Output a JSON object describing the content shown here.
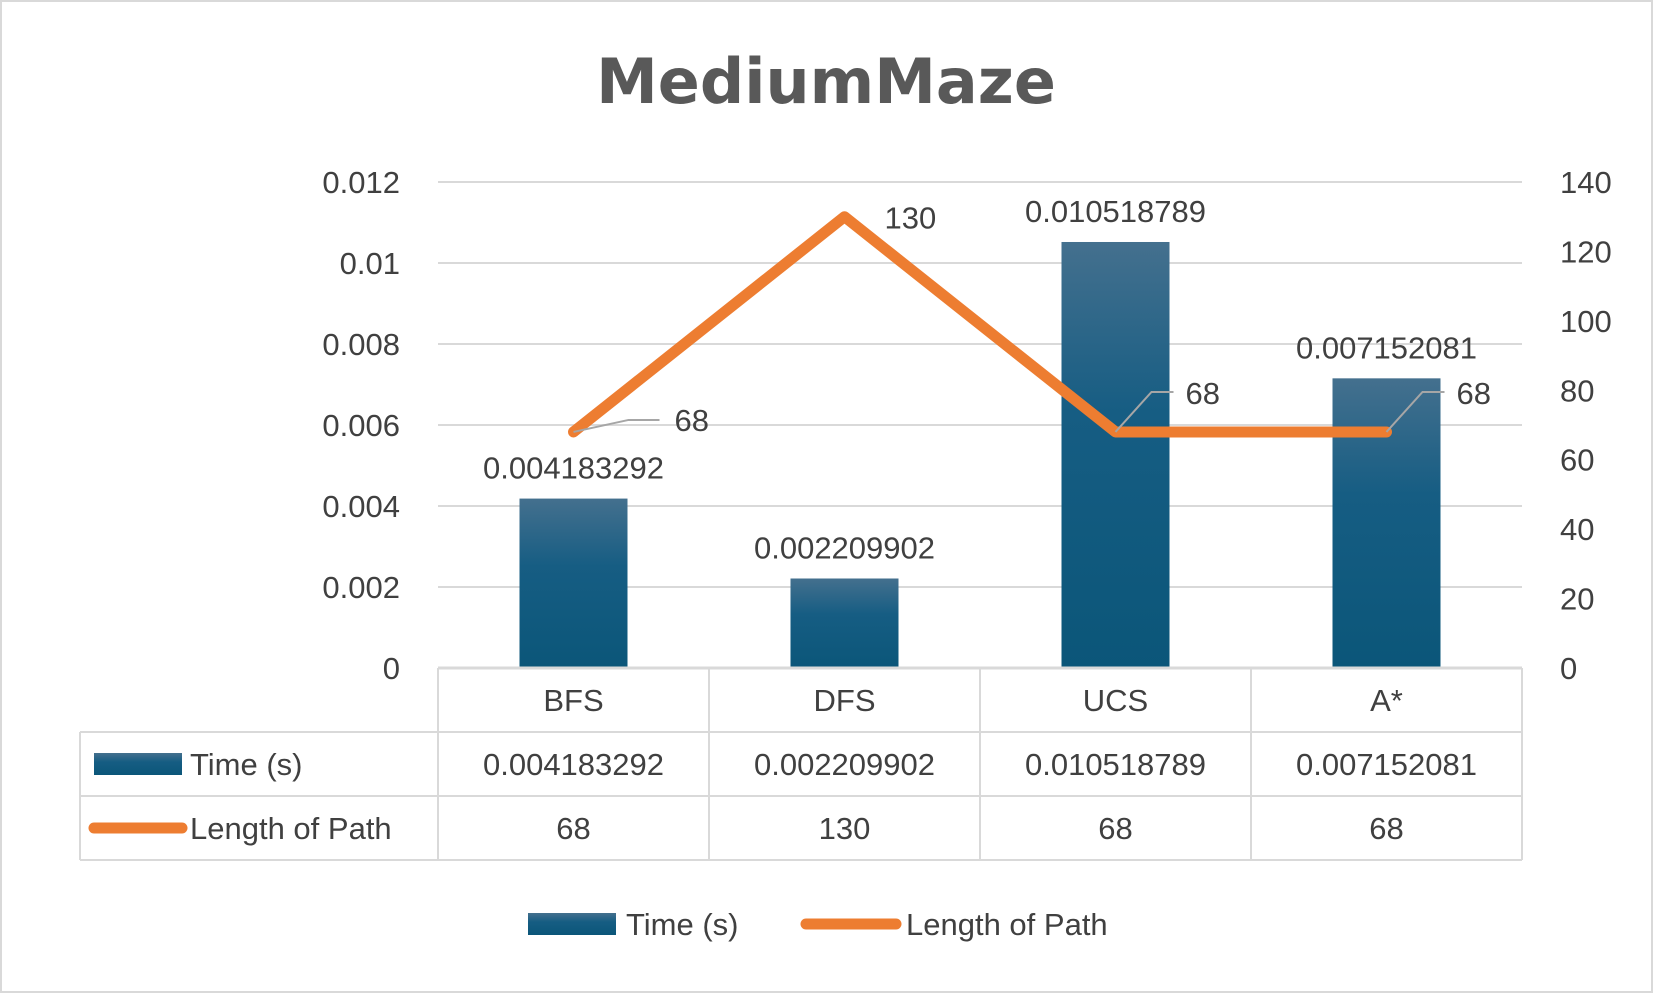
{
  "chart_data": {
    "type": "bar",
    "title": "MediumMaze",
    "categories": [
      "BFS",
      "DFS",
      "UCS",
      "A*"
    ],
    "series": [
      {
        "name": "Time (s)",
        "type": "bar",
        "axis": "left",
        "color": "#1f5f84",
        "values": [
          0.004183292,
          0.002209902,
          0.010518789,
          0.007152081
        ],
        "labels": [
          "0.004183292",
          "0.002209902",
          "0.010518789",
          "0.007152081"
        ]
      },
      {
        "name": "Length of Path",
        "type": "line",
        "axis": "right",
        "color": "#ed7d31",
        "values": [
          68,
          130,
          68,
          68
        ],
        "labels": [
          "68",
          "130",
          "68",
          "68"
        ]
      }
    ],
    "y_left": {
      "min": 0,
      "max": 0.012,
      "ticks": [
        "0",
        "0.002",
        "0.004",
        "0.006",
        "0.008",
        "0.01",
        "0.012"
      ]
    },
    "y_right": {
      "min": 0,
      "max": 140,
      "ticks": [
        "0",
        "20",
        "40",
        "60",
        "80",
        "100",
        "120",
        "140"
      ]
    },
    "grid": true,
    "legend_position": "bottom",
    "data_table": true
  }
}
